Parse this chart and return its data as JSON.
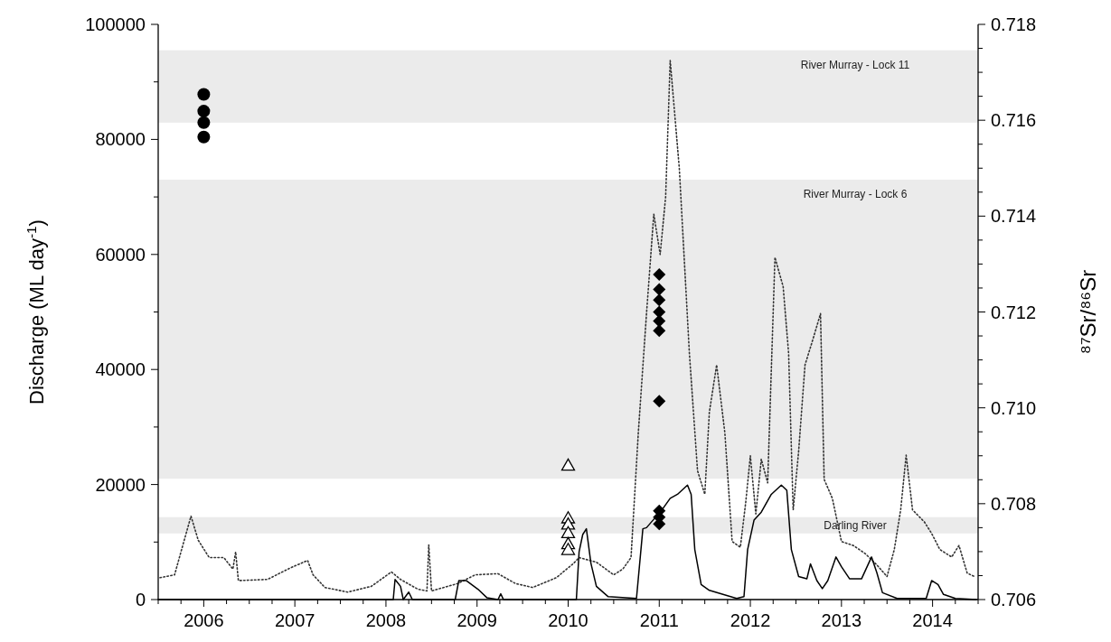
{
  "chart_data": {
    "type": "line",
    "xlabel": null,
    "ylabel": "Discharge (ML day$^{-1}$)",
    "y2label": "⁸⁷Sr/⁸⁶Sr",
    "xlim": [
      2005.5,
      2014.5
    ],
    "xticks": [
      {
        "value": 2005.5,
        "label": null
      },
      {
        "value": 2005.75,
        "label": null
      },
      2006,
      {
        "value": 2006.25,
        "label": null
      },
      {
        "value": 2006.5,
        "label": null
      },
      {
        "value": 2006.75,
        "label": null
      },
      2007,
      {
        "value": 2007.25,
        "label": null
      },
      {
        "value": 2007.5,
        "label": null
      },
      {
        "value": 2007.75,
        "label": null
      },
      2008,
      {
        "value": 2008.25,
        "label": null
      },
      {
        "value": 2008.5,
        "label": null
      },
      {
        "value": 2008.75,
        "label": null
      },
      2009,
      {
        "value": 2009.25,
        "label": null
      },
      {
        "value": 2009.5,
        "label": null
      },
      {
        "value": 2009.75,
        "label": null
      },
      2010,
      {
        "value": 2010.25,
        "label": null
      },
      {
        "value": 2010.5,
        "label": null
      },
      {
        "value": 2010.75,
        "label": null
      },
      2011,
      {
        "value": 2011.25,
        "label": null
      },
      {
        "value": 2011.5,
        "label": null
      },
      {
        "value": 2011.75,
        "label": null
      },
      2012,
      {
        "value": 2012.25,
        "label": null
      },
      {
        "value": 2012.5,
        "label": null
      },
      {
        "value": 2012.75,
        "label": null
      },
      2013,
      {
        "value": 2013.25,
        "label": null
      },
      {
        "value": 2013.5,
        "label": null
      },
      {
        "value": 2013.75,
        "label": null
      },
      2014,
      {
        "value": 2014.25,
        "label": null
      },
      {
        "value": 2014.5,
        "label": null
      }
    ],
    "ylim": [
      0,
      100000
    ],
    "yticks": [
      0,
      {
        "value": 10000,
        "label": null
      },
      20000,
      {
        "value": 30000,
        "label": null
      },
      40000,
      {
        "value": 50000,
        "label": null
      },
      60000,
      {
        "value": 70000,
        "label": null
      },
      80000,
      {
        "value": 90000,
        "label": null
      },
      100000
    ],
    "y2lim": [
      0.706,
      0.718
    ],
    "y2ticks": [
      {
        "value": 0.706,
        "label": "0.706"
      },
      {
        "value": 0.7065,
        "label": null
      },
      {
        "value": 0.707,
        "label": null
      },
      {
        "value": 0.7075,
        "label": null
      },
      {
        "value": 0.708,
        "label": "0.708"
      },
      {
        "value": 0.7085,
        "label": null
      },
      {
        "value": 0.709,
        "label": null
      },
      {
        "value": 0.7095,
        "label": null
      },
      {
        "value": 0.71,
        "label": "0.710"
      },
      {
        "value": 0.7105,
        "label": null
      },
      {
        "value": 0.711,
        "label": null
      },
      {
        "value": 0.7115,
        "label": null
      },
      {
        "value": 0.712,
        "label": "0.712"
      },
      {
        "value": 0.7125,
        "label": null
      },
      {
        "value": 0.713,
        "label": null
      },
      {
        "value": 0.7135,
        "label": null
      },
      {
        "value": 0.714,
        "label": "0.714"
      },
      {
        "value": 0.7145,
        "label": null
      },
      {
        "value": 0.715,
        "label": null
      },
      {
        "value": 0.7155,
        "label": null
      },
      {
        "value": 0.716,
        "label": "0.716"
      },
      {
        "value": 0.7165,
        "label": null
      },
      {
        "value": 0.717,
        "label": null
      },
      {
        "value": 0.7175,
        "label": null
      },
      {
        "value": 0.718,
        "label": "0.718"
      }
    ],
    "bands": [
      {
        "axis": "y2",
        "from": 0.71595,
        "to": 0.71746,
        "label": "River Murray - Lock 11",
        "color": "#ebebeb"
      },
      {
        "axis": "y2",
        "from": 0.70852,
        "to": 0.71476,
        "label": "River Murray - Lock 6",
        "color": "#ebebeb"
      },
      {
        "axis": "y2",
        "from": 0.70738,
        "to": 0.70772,
        "label": "Darling River",
        "color": "#ebebeb"
      }
    ],
    "grid": false,
    "series": [
      {
        "color": "#333333",
        "line_style": "dotted",
        "marker": "none",
        "x": [
          2005.52,
          2005.68,
          2005.75,
          2005.86,
          2005.94,
          2006.06,
          2006.22,
          2006.32,
          2006.35,
          2006.38,
          2006.7,
          2006.95,
          2007.14,
          2007.2,
          2007.33,
          2007.58,
          2007.84,
          2008.06,
          2008.16,
          2008.35,
          2008.45,
          2008.47,
          2008.5,
          2008.79,
          2008.98,
          2009.23,
          2009.42,
          2009.61,
          2009.87,
          2010.06,
          2010.12,
          2010.31,
          2010.5,
          2010.6,
          2010.69,
          2010.77,
          2010.86,
          2010.94,
          2011.01,
          2011.07,
          2011.12,
          2011.22,
          2011.33,
          2011.42,
          2011.5,
          2011.55,
          2011.63,
          2011.72,
          2011.8,
          2011.89,
          2011.95,
          2012.0,
          2012.06,
          2012.12,
          2012.19,
          2012.27,
          2012.36,
          2012.42,
          2012.47,
          2012.53,
          2012.6,
          2012.68,
          2012.77,
          2012.81,
          2012.9,
          2013.0,
          2013.13,
          2013.26,
          2013.39,
          2013.5,
          2013.58,
          2013.65,
          2013.71,
          2013.78,
          2013.91,
          2013.99,
          2014.08,
          2014.21,
          2014.29,
          2014.38,
          2014.46
        ],
        "values": [
          3800,
          4300,
          8300,
          14500,
          10300,
          7300,
          7300,
          5300,
          8300,
          3300,
          3500,
          5500,
          6800,
          4300,
          2100,
          1300,
          2300,
          4800,
          3500,
          1800,
          1500,
          9500,
          1500,
          2800,
          4300,
          4500,
          2800,
          2100,
          3800,
          6300,
          7300,
          6500,
          4300,
          5300,
          7300,
          29000,
          49700,
          67000,
          60000,
          70000,
          93700,
          75000,
          43000,
          22400,
          18300,
          32600,
          40800,
          29000,
          10100,
          9100,
          17000,
          25000,
          14900,
          24400,
          20300,
          59500,
          54400,
          42800,
          15600,
          25800,
          40800,
          44900,
          49700,
          20900,
          17600,
          10100,
          9400,
          8000,
          6000,
          4000,
          8700,
          15600,
          25100,
          15600,
          13500,
          11500,
          8700,
          7400,
          9400,
          4600,
          4000
        ]
      },
      {
        "color": "#000000",
        "line_style": "solid",
        "marker": "none",
        "x": [
          2005.5,
          2008.08,
          2008.1,
          2008.16,
          2008.19,
          2008.25,
          2008.29,
          2008.76,
          2008.8,
          2008.88,
          2009.01,
          2009.11,
          2009.23,
          2009.26,
          2009.29,
          2010.09,
          2010.12,
          2010.16,
          2010.2,
          2010.25,
          2010.31,
          2010.44,
          2010.75,
          2010.82,
          2010.86,
          2011.03,
          2011.12,
          2011.2,
          2011.31,
          2011.35,
          2011.39,
          2011.46,
          2011.55,
          2011.85,
          2011.93,
          2011.97,
          2012.04,
          2012.12,
          2012.23,
          2012.34,
          2012.4,
          2012.45,
          2012.53,
          2012.62,
          2012.66,
          2012.73,
          2012.79,
          2012.85,
          2012.94,
          2013.0,
          2013.09,
          2013.22,
          2013.33,
          2013.39,
          2013.45,
          2013.61,
          2013.93,
          2013.99,
          2014.06,
          2014.12,
          2014.25,
          2014.48
        ],
        "values": [
          0,
          0,
          3500,
          2300,
          0,
          1300,
          0,
          0,
          3300,
          3300,
          1800,
          300,
          0,
          1000,
          0,
          0,
          8300,
          11300,
          12300,
          6300,
          2300,
          500,
          200,
          12300,
          12500,
          15600,
          17600,
          18300,
          19900,
          18300,
          8700,
          2600,
          1600,
          200,
          500,
          8700,
          13800,
          15200,
          18300,
          19900,
          19000,
          8700,
          4000,
          3600,
          6200,
          3300,
          1900,
          3300,
          7400,
          5700,
          3600,
          3600,
          7400,
          4600,
          1200,
          200,
          200,
          3300,
          2600,
          900,
          200,
          0
        ]
      },
      {
        "type": "scatter",
        "axis": "y2",
        "color": "#000000",
        "marker": "circle",
        "x": [
          2006,
          2006,
          2006,
          2006
        ],
        "values": [
          0.71654,
          0.71619,
          0.71595,
          0.71565
        ]
      },
      {
        "type": "scatter",
        "axis": "y2",
        "color": "#000000",
        "marker": "triangle",
        "x": [
          2010,
          2010,
          2010,
          2010,
          2010,
          2010
        ],
        "values": [
          0.7088,
          0.7077,
          0.70757,
          0.70739,
          0.70716,
          0.70704
        ]
      },
      {
        "type": "scatter",
        "axis": "y2",
        "color": "#000000",
        "marker": "diamond",
        "x": [
          2011,
          2011,
          2011,
          2011,
          2011,
          2011,
          2011,
          2011,
          2011,
          2011
        ],
        "values": [
          0.71278,
          0.71247,
          0.71225,
          0.712,
          0.71181,
          0.71161,
          0.71014,
          0.70785,
          0.70772,
          0.70758
        ]
      }
    ]
  }
}
